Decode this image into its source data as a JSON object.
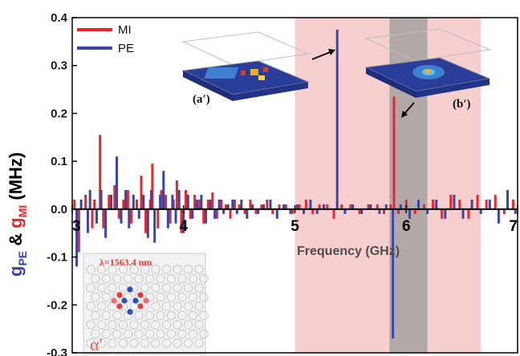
{
  "chart_data": {
    "type": "bar",
    "xlabel": "Frequency (GHz)",
    "xlim": [
      3,
      7
    ],
    "ylim": [
      -0.3,
      0.4
    ],
    "xticks": [
      "3",
      "4",
      "5",
      "6",
      "7"
    ],
    "yticks": [
      "0.4",
      "0.3",
      "0.2",
      "0.1",
      "0.0",
      "-0.1",
      "-0.2",
      "-0.3"
    ],
    "ylabel": {
      "g1": "g",
      "g1_sub": "PE",
      "amp": " & ",
      "g2": "g",
      "g2_sub": "MI",
      "unit": " (MHz)"
    },
    "legend": {
      "position": "top-left"
    },
    "shaded_regions": [
      {
        "x0": 5.0,
        "x1": 6.67,
        "color": "#f7cfcf"
      },
      {
        "x0": 5.85,
        "x1": 6.19,
        "color": "#b3a8a8"
      }
    ],
    "series": [
      {
        "name": "MI",
        "color": "#e8262b",
        "x": [
          3.02,
          3.06,
          3.12,
          3.18,
          3.2,
          3.25,
          3.28,
          3.33,
          3.38,
          3.42,
          3.46,
          3.5,
          3.53,
          3.58,
          3.62,
          3.66,
          3.7,
          3.72,
          3.77,
          3.8,
          3.84,
          3.88,
          3.91,
          3.94,
          3.98,
          4.02,
          4.06,
          4.1,
          4.14,
          4.18,
          4.22,
          4.26,
          4.3,
          4.34,
          4.38,
          4.42,
          4.46,
          4.5,
          4.55,
          4.6,
          4.65,
          4.7,
          4.75,
          4.8,
          4.86,
          4.92,
          4.98,
          5.04,
          5.1,
          5.16,
          5.22,
          5.29,
          5.35,
          5.42,
          5.5,
          5.58,
          5.66,
          5.74,
          5.8,
          5.86,
          5.89,
          5.93,
          6.0,
          6.08,
          6.16,
          6.24,
          6.32,
          6.4,
          6.48,
          6.56,
          6.64,
          6.72,
          6.8,
          6.88,
          6.96
        ],
        "values": [
          0.02,
          -0.09,
          0.03,
          -0.04,
          0.02,
          0.155,
          -0.04,
          0.03,
          0.05,
          -0.02,
          0.02,
          0.04,
          -0.03,
          0.02,
          0.07,
          -0.05,
          0.02,
          0.095,
          -0.04,
          0.04,
          0.03,
          -0.03,
          0.02,
          0.06,
          -0.05,
          0.04,
          -0.02,
          0.03,
          0.02,
          -0.03,
          0.02,
          0.035,
          -0.02,
          0.02,
          0.01,
          -0.02,
          0.02,
          0.01,
          -0.01,
          0.02,
          -0.01,
          0.01,
          0.02,
          -0.01,
          0.01,
          0.01,
          -0.01,
          0.01,
          0.02,
          -0.01,
          0.01,
          0.01,
          -0.02,
          0.01,
          0.01,
          -0.01,
          0.01,
          0.01,
          -0.01,
          0.01,
          0.235,
          -0.01,
          0.02,
          -0.01,
          0.01,
          0.02,
          -0.02,
          0.03,
          0.02,
          -0.02,
          0.03,
          0.02,
          0.03,
          -0.01,
          0.02
        ]
      },
      {
        "name": "PE",
        "color": "#3a47a8",
        "x": [
          3.04,
          3.08,
          3.14,
          3.16,
          3.22,
          3.26,
          3.3,
          3.35,
          3.4,
          3.44,
          3.48,
          3.51,
          3.55,
          3.6,
          3.64,
          3.68,
          3.71,
          3.74,
          3.79,
          3.82,
          3.86,
          3.9,
          3.93,
          3.96,
          4.0,
          4.04,
          4.08,
          4.12,
          4.16,
          4.2,
          4.24,
          4.28,
          4.32,
          4.36,
          4.4,
          4.44,
          4.48,
          4.52,
          4.57,
          4.62,
          4.67,
          4.72,
          4.78,
          4.84,
          4.9,
          4.96,
          5.02,
          5.08,
          5.14,
          5.2,
          5.26,
          5.38,
          5.45,
          5.52,
          5.6,
          5.68,
          5.76,
          5.82,
          5.88,
          5.95,
          6.03,
          6.11,
          6.19,
          6.27,
          6.35,
          6.43,
          6.51,
          6.59,
          6.67,
          6.75,
          6.83,
          6.91,
          6.98
        ],
        "values": [
          -0.12,
          0.02,
          -0.05,
          0.04,
          -0.03,
          0.04,
          -0.06,
          0.03,
          0.11,
          -0.03,
          0.04,
          -0.04,
          0.03,
          -0.02,
          0.03,
          -0.06,
          0.04,
          -0.07,
          0.03,
          0.08,
          -0.04,
          0.03,
          -0.03,
          0.04,
          -0.05,
          0.03,
          -0.02,
          0.02,
          0.03,
          -0.03,
          0.02,
          -0.02,
          0.02,
          -0.01,
          0.01,
          0.02,
          -0.01,
          0.02,
          -0.02,
          0.01,
          -0.01,
          0.01,
          0.02,
          -0.02,
          0.01,
          -0.01,
          0.01,
          -0.01,
          0.02,
          -0.01,
          0.01,
          0.375,
          -0.01,
          0.01,
          -0.01,
          0.01,
          -0.01,
          0.01,
          -0.27,
          0.01,
          -0.02,
          0.02,
          -0.01,
          0.02,
          -0.02,
          0.03,
          -0.02,
          0.02,
          -0.01,
          0.02,
          -0.03,
          0.04,
          -0.01
        ]
      }
    ],
    "insets": [
      {
        "label": "(a′)"
      },
      {
        "label": "(b′)"
      },
      {
        "label": "α′",
        "wavelength": "λ=1563.4 nm"
      }
    ]
  }
}
